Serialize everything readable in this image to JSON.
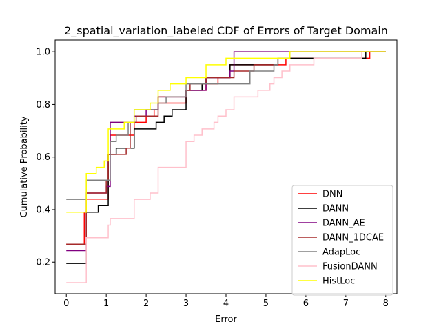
{
  "chart_data": {
    "type": "line",
    "step": true,
    "title": "2_spatial_variation_labeled CDF of Errors of Target Domain",
    "xlabel": "Error",
    "ylabel": "Cumulative Probability",
    "xlim": [
      -0.28,
      8.28
    ],
    "ylim": [
      0.08,
      1.045
    ],
    "xticks": [
      0,
      1,
      2,
      3,
      4,
      5,
      6,
      7,
      8
    ],
    "yticks": [
      0.2,
      0.4,
      0.6,
      0.8,
      1.0
    ],
    "xtick_labels": [
      "0",
      "1",
      "2",
      "3",
      "4",
      "5",
      "6",
      "7",
      "8"
    ],
    "ytick_labels": [
      "0.2",
      "0.4",
      "0.6",
      "0.8",
      "1.0"
    ],
    "grid": false,
    "legend_position": "lower-right",
    "series": [
      {
        "name": "DNN",
        "color": "#ff0000",
        "x": [
          0,
          0.4,
          0.45,
          0.5,
          1.0,
          1.05,
          1.1,
          1.5,
          1.7,
          2.0,
          2.2,
          2.3,
          2.6,
          3.0,
          3.5,
          3.8,
          4.1,
          4.5,
          5.0,
          5.3,
          5.5,
          6.2,
          7.3,
          7.6,
          8.0
        ],
        "y": [
          0.268,
          0.268,
          0.39,
          0.44,
          0.44,
          0.61,
          0.683,
          0.683,
          0.732,
          0.756,
          0.78,
          0.805,
          0.805,
          0.854,
          0.878,
          0.902,
          0.951,
          0.951,
          0.951,
          0.951,
          0.976,
          0.976,
          0.976,
          1.0,
          1.0
        ]
      },
      {
        "name": "DANN",
        "color": "#000000",
        "x": [
          0,
          0.4,
          0.5,
          0.7,
          0.8,
          1.0,
          1.05,
          1.25,
          1.55,
          1.7,
          2.0,
          2.1,
          2.25,
          2.35,
          2.45,
          2.65,
          2.9,
          3.0,
          3.4,
          3.5,
          3.9,
          4.1,
          4.2,
          4.6,
          5.1,
          5.3,
          5.6,
          6.2,
          7.5,
          7.7,
          8.0
        ],
        "y": [
          0.195,
          0.195,
          0.39,
          0.39,
          0.415,
          0.415,
          0.61,
          0.634,
          0.634,
          0.707,
          0.707,
          0.707,
          0.732,
          0.732,
          0.756,
          0.78,
          0.78,
          0.854,
          0.878,
          0.902,
          0.902,
          0.951,
          0.951,
          0.951,
          0.951,
          0.976,
          0.976,
          0.976,
          1.0,
          1.0,
          1.0
        ]
      },
      {
        "name": "DANN_AE",
        "color": "#800080",
        "x": [
          0,
          0.4,
          0.5,
          0.85,
          1.0,
          1.1,
          1.6,
          1.7,
          2.0,
          2.3,
          2.6,
          3.0,
          3.5,
          3.9,
          4.1,
          4.2,
          5.0,
          5.3,
          6.0,
          8.0
        ],
        "y": [
          0.244,
          0.244,
          0.463,
          0.463,
          0.488,
          0.732,
          0.732,
          0.756,
          0.78,
          0.829,
          0.829,
          0.854,
          0.902,
          0.902,
          0.927,
          1.0,
          1.0,
          1.0,
          1.0,
          1.0
        ]
      },
      {
        "name": "DANN_1DCAE",
        "color": "#a52a2a",
        "x": [
          0,
          0.4,
          0.5,
          0.85,
          1.0,
          1.05,
          1.5,
          1.6,
          1.75,
          2.0,
          2.3,
          2.8,
          3.0,
          3.1,
          3.5,
          4.0,
          4.2,
          4.5,
          4.7,
          5.3,
          5.6,
          8.0
        ],
        "y": [
          0.268,
          0.268,
          0.463,
          0.463,
          0.512,
          0.61,
          0.634,
          0.732,
          0.756,
          0.756,
          0.829,
          0.829,
          0.854,
          0.878,
          0.902,
          0.902,
          0.927,
          0.927,
          0.951,
          0.976,
          1.0,
          1.0
        ]
      },
      {
        "name": "AdapLoc",
        "color": "#808080",
        "x": [
          0,
          0.4,
          0.5,
          0.95,
          1.1,
          1.25,
          1.5,
          1.55,
          1.7,
          2.0,
          2.3,
          2.5,
          2.85,
          3.0,
          3.5,
          4.0,
          4.3,
          4.6,
          5.0,
          5.2,
          5.3,
          5.6,
          8.0
        ],
        "y": [
          0.439,
          0.439,
          0.512,
          0.512,
          0.659,
          0.683,
          0.683,
          0.732,
          0.78,
          0.78,
          0.805,
          0.829,
          0.829,
          0.878,
          0.878,
          0.878,
          0.878,
          0.927,
          0.927,
          0.951,
          0.976,
          1.0,
          1.0
        ]
      },
      {
        "name": "FusionDANN",
        "color": "#ffc0cb",
        "x": [
          0,
          0.4,
          0.5,
          1.0,
          1.05,
          1.1,
          1.6,
          1.7,
          2.0,
          2.1,
          2.3,
          2.9,
          3.0,
          3.1,
          3.2,
          3.4,
          3.5,
          3.7,
          3.8,
          4.0,
          4.1,
          4.2,
          4.5,
          4.6,
          4.8,
          5.0,
          5.1,
          5.2,
          5.3,
          5.4,
          5.6,
          6.0,
          6.2,
          7.4,
          8.0
        ],
        "y": [
          0.122,
          0.122,
          0.293,
          0.293,
          0.341,
          0.366,
          0.366,
          0.439,
          0.439,
          0.463,
          0.561,
          0.561,
          0.659,
          0.659,
          0.683,
          0.707,
          0.707,
          0.732,
          0.756,
          0.78,
          0.78,
          0.829,
          0.829,
          0.829,
          0.854,
          0.854,
          0.878,
          0.902,
          0.902,
          0.927,
          0.951,
          0.951,
          0.976,
          1.0,
          1.0
        ]
      },
      {
        "name": "HistLoc",
        "color": "#ffff00",
        "x": [
          0,
          0.4,
          0.5,
          0.75,
          0.95,
          1.05,
          1.45,
          1.7,
          2.0,
          2.1,
          2.3,
          2.6,
          2.8,
          3.0,
          3.5,
          3.9,
          4.0,
          4.5,
          5.6,
          8.0
        ],
        "y": [
          0.39,
          0.39,
          0.537,
          0.561,
          0.585,
          0.707,
          0.732,
          0.78,
          0.78,
          0.805,
          0.854,
          0.878,
          0.878,
          0.902,
          0.951,
          0.951,
          0.976,
          0.976,
          1.0,
          1.0
        ]
      }
    ]
  }
}
